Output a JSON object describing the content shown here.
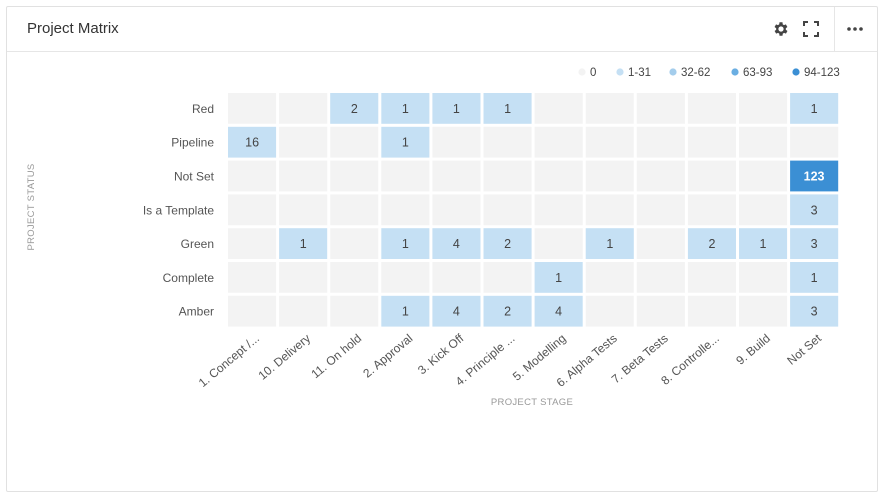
{
  "widget": {
    "title": "Project Matrix"
  },
  "toolbar": {
    "settings_icon": "gear-icon",
    "expand_icon": "fullscreen-icon",
    "more_icon": "more-horizontal-icon"
  },
  "chart_data": {
    "type": "heatmap",
    "title": "Project Matrix",
    "xlabel": "PROJECT STAGE",
    "ylabel": "PROJECT STATUS",
    "x_categories": [
      "1. Concept /...",
      "10. Delivery",
      "11. On hold",
      "2. Approval",
      "3. Kick Off",
      "4. Principle ...",
      "5. Modelling",
      "6. Alpha Tests",
      "7. Beta Tests",
      "8. Controlle...",
      "9. Build",
      "Not Set"
    ],
    "y_categories": [
      "Red",
      "Pipeline",
      "Not Set",
      "Is a Template",
      "Green",
      "Complete",
      "Amber"
    ],
    "values": [
      [
        null,
        null,
        2,
        1,
        1,
        1,
        null,
        null,
        null,
        null,
        null,
        1
      ],
      [
        16,
        null,
        null,
        1,
        null,
        null,
        null,
        null,
        null,
        null,
        null,
        null
      ],
      [
        null,
        null,
        null,
        null,
        null,
        null,
        null,
        null,
        null,
        null,
        null,
        123
      ],
      [
        null,
        null,
        null,
        null,
        null,
        null,
        null,
        null,
        null,
        null,
        null,
        3
      ],
      [
        null,
        1,
        null,
        1,
        4,
        2,
        null,
        1,
        null,
        2,
        1,
        3
      ],
      [
        null,
        null,
        null,
        null,
        null,
        null,
        1,
        null,
        null,
        null,
        null,
        1
      ],
      [
        null,
        null,
        null,
        1,
        4,
        2,
        4,
        null,
        null,
        null,
        null,
        3
      ]
    ],
    "legend": [
      {
        "label": "0",
        "min": 0,
        "max": 0,
        "color": "#f3f3f3"
      },
      {
        "label": "1-31",
        "min": 1,
        "max": 31,
        "color": "#c5e0f4"
      },
      {
        "label": "32-62",
        "min": 32,
        "max": 62,
        "color": "#a4cdec"
      },
      {
        "label": "63-93",
        "min": 63,
        "max": 93,
        "color": "#6aaee2"
      },
      {
        "label": "94-123",
        "min": 94,
        "max": 123,
        "color": "#3b8fd4"
      }
    ],
    "legend_position": "top-right"
  }
}
